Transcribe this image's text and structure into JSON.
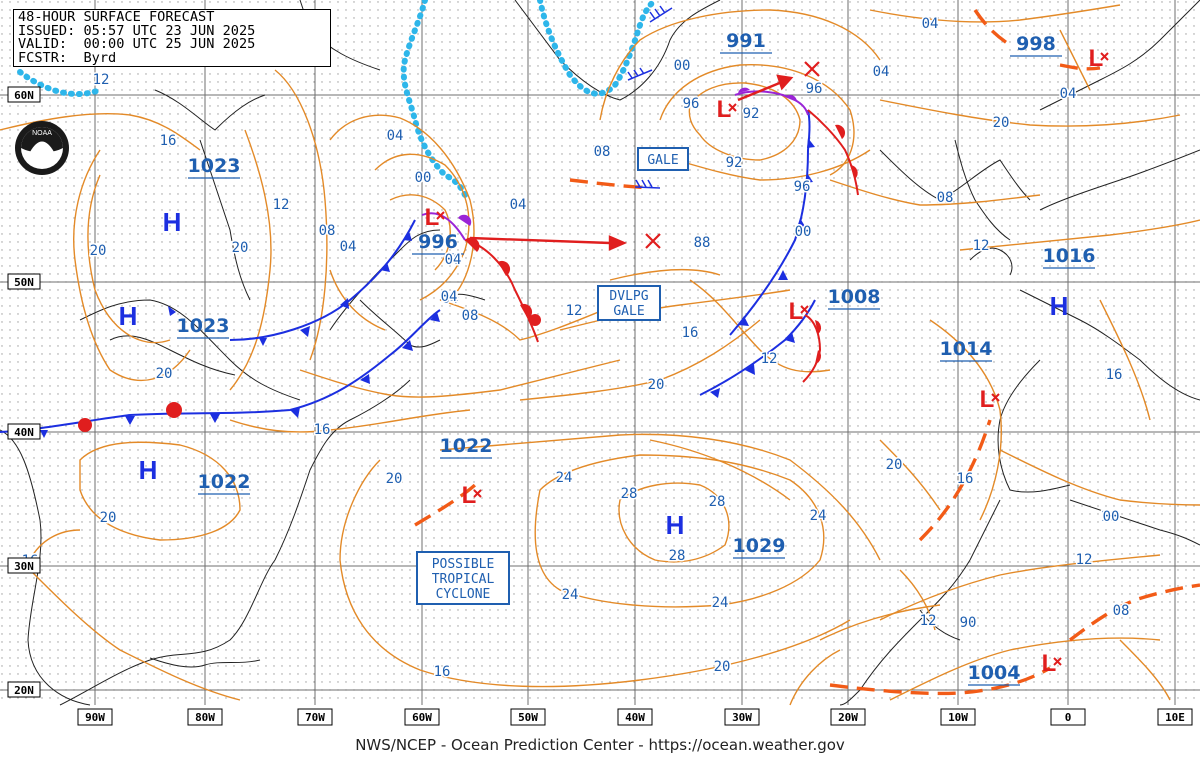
{
  "header": {
    "line1": "48-HOUR SURFACE FORECAST",
    "line2": "ISSUED: 05:57 UTC 23 JUN 2025",
    "line3": "VALID:  00:00 UTC 25 JUN 2025",
    "line4": "FCSTR:  Byrd"
  },
  "footer": "NWS/NCEP - Ocean Prediction Center - https://ocean.weather.gov",
  "logo": "NOAA",
  "lat_labels": [
    "60N",
    "50N",
    "40N",
    "30N",
    "20N"
  ],
  "lon_labels": [
    "90W",
    "80W",
    "70W",
    "60W",
    "50W",
    "40W",
    "30W",
    "20W",
    "10W",
    "0",
    "10E"
  ],
  "pressure_centers": [
    {
      "type": "H",
      "value": "1023",
      "label": "H-1023-hudson"
    },
    {
      "type": "H",
      "value": "1023",
      "label": "H-1023-greatlakes"
    },
    {
      "type": "H",
      "value": "1022",
      "label": "H-1022-southeast"
    },
    {
      "type": "H",
      "value": "1029",
      "label": "H-1029-azores"
    },
    {
      "type": "H",
      "value": "1016",
      "label": "H-1016-france"
    },
    {
      "type": "L",
      "value": "996",
      "label": "L-996-labrador"
    },
    {
      "type": "L",
      "value": "991",
      "label": "L-991-north-atlantic"
    },
    {
      "type": "L",
      "value": "998",
      "label": "L-998-norway"
    },
    {
      "type": "L",
      "value": "1008",
      "label": "L-1008-midatlantic"
    },
    {
      "type": "L",
      "value": "1014",
      "label": "L-1014-iberia"
    },
    {
      "type": "L",
      "value": "1022",
      "label": "L-1022-bermuda"
    },
    {
      "type": "L",
      "value": "1004",
      "label": "L-1004-africa"
    }
  ],
  "isobar_labels": [
    "04",
    "12",
    "16",
    "12",
    "08",
    "04",
    "20",
    "20",
    "04",
    "00",
    "04",
    "00",
    "04",
    "08",
    "12",
    "16",
    "12",
    "20",
    "20",
    "16",
    "16",
    "20",
    "20",
    "24",
    "24",
    "28",
    "28",
    "28",
    "24",
    "24",
    "20",
    "20",
    "16",
    "16",
    "12",
    "08",
    "12",
    "08",
    "12",
    "16",
    "20",
    "04",
    "08",
    "00",
    "96",
    "96",
    "92",
    "92",
    "96",
    "00",
    "04",
    "04",
    "88",
    "90",
    "04",
    "00",
    "16"
  ],
  "boxes": {
    "gale": "GALE",
    "dvlpg": [
      "DVLPG",
      "GALE"
    ],
    "tropical": [
      "POSSIBLE",
      "TROPICAL",
      "CYCLONE"
    ]
  },
  "colors": {
    "isobar": "#e38a28",
    "label_blue": "#1f5fb0",
    "cold_front": "#1c2fe0",
    "warm_front": "#e01e1e",
    "occluded": "#9a24d6",
    "ice": "#2eb6ea",
    "trough": "#f25b17",
    "grid": "#6f6f6f"
  }
}
